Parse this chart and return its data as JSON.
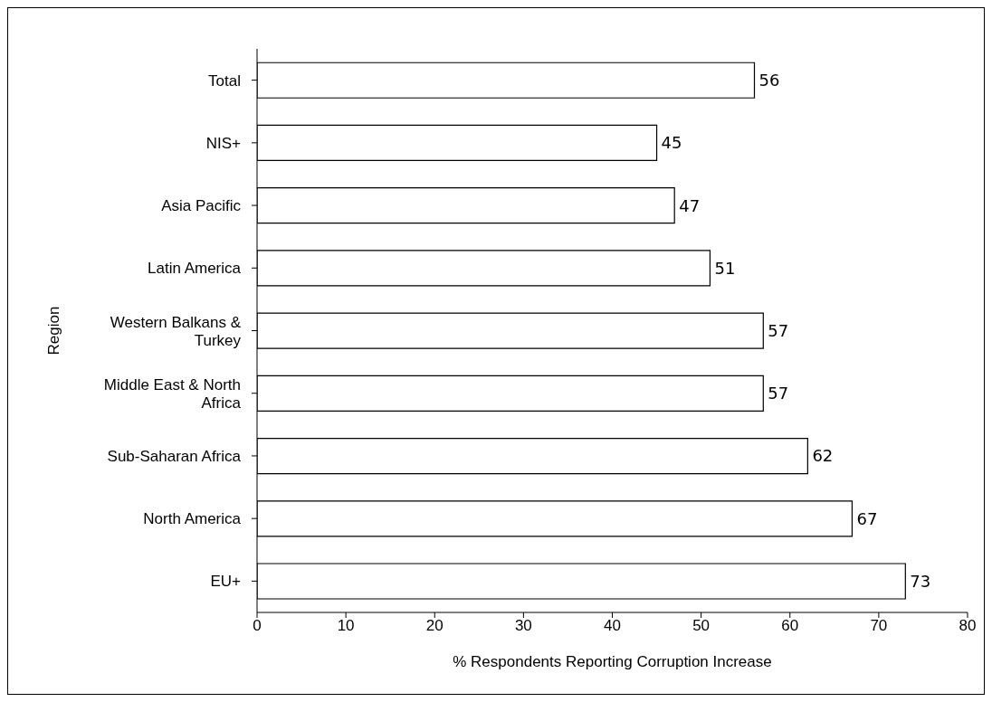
{
  "chart_data": {
    "type": "bar",
    "orientation": "horizontal",
    "ylabel": "Region",
    "xlabel": "% Respondents Reporting Corruption Increase",
    "categories": [
      "Total",
      "NIS+",
      "Asia Pacific",
      "Latin America",
      "Western Balkans & Turkey",
      "Middle East & North Africa",
      "Sub-Saharan Africa",
      "North America",
      "EU+"
    ],
    "values": [
      56,
      45,
      47,
      51,
      57,
      57,
      62,
      67,
      73
    ],
    "color": "#ffffff",
    "xlim": [
      0,
      80
    ],
    "xticks": [
      0,
      10,
      20,
      30,
      40,
      50,
      60,
      70,
      80
    ],
    "grid": false,
    "data_labels": true,
    "legend": false
  }
}
